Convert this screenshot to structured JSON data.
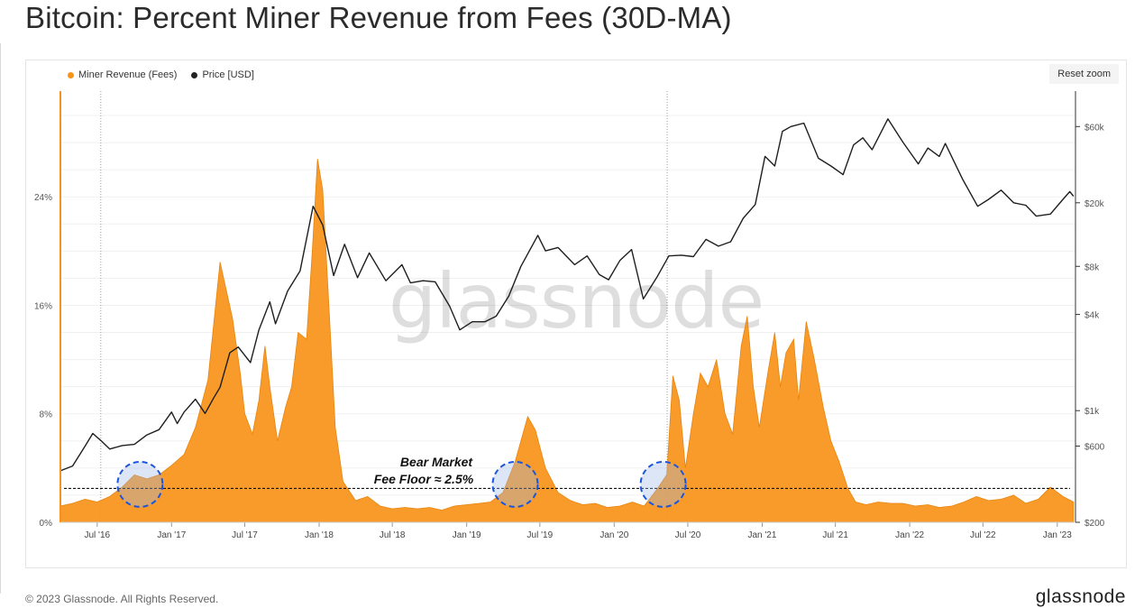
{
  "title": "Bitcoin: Percent Miner Revenue from Fees (30D-MA)",
  "legend": [
    {
      "label": "Miner Revenue (Fees)",
      "color": "#f7931a"
    },
    {
      "label": "Price [USD]",
      "color": "#222222"
    }
  ],
  "reset_zoom_label": "Reset zoom",
  "watermark": "glassnode",
  "annotation": {
    "line1": "Bear Market",
    "line2": "Fee Floor ≈ 2.5%"
  },
  "footer": {
    "copyright": "© 2023 Glassnode. All Rights Reserved.",
    "logo": "glassnode"
  },
  "colors": {
    "fees": "#f7931a",
    "price": "#1f1f1f",
    "highlight_circle": "#1a56db"
  },
  "chart_data": {
    "type": "area",
    "x_tick_labels": [
      "Jul '16",
      "Jan '17",
      "Jul '17",
      "Jan '18",
      "Jul '18",
      "Jan '19",
      "Jul '19",
      "Jan '20",
      "Jul '20",
      "Jan '21",
      "Jul '21",
      "Jan '22",
      "Jul '22",
      "Jan '23"
    ],
    "x_tick_dates": [
      "2016-07-01",
      "2017-01-01",
      "2017-07-01",
      "2018-01-01",
      "2018-07-01",
      "2019-01-01",
      "2019-07-01",
      "2020-01-01",
      "2020-07-01",
      "2021-01-01",
      "2021-07-01",
      "2022-01-01",
      "2022-07-01",
      "2023-01-01"
    ],
    "xlim": [
      "2016-04-01",
      "2023-02-15"
    ],
    "left_axis": {
      "label": "",
      "tick_labels": [
        "0%",
        "8%",
        "16%",
        "24%"
      ],
      "tick_values": [
        0,
        8,
        16,
        24
      ],
      "ylim": [
        0,
        31.8
      ]
    },
    "right_axis": {
      "label": "",
      "scale": "log",
      "tick_labels": [
        "$200",
        "$600",
        "$1k",
        "$4k",
        "$8k",
        "$20k",
        "$60k"
      ],
      "tick_values": [
        200,
        600,
        1000,
        4000,
        8000,
        20000,
        60000
      ]
    },
    "series": [
      {
        "name": "Miner Revenue (Fees)",
        "axis": "left",
        "type": "area",
        "color": "#f7931a",
        "points": [
          [
            "2016-04-01",
            1.2
          ],
          [
            "2016-05-01",
            1.4
          ],
          [
            "2016-06-01",
            1.7
          ],
          [
            "2016-07-01",
            1.5
          ],
          [
            "2016-08-01",
            1.9
          ],
          [
            "2016-09-01",
            2.6
          ],
          [
            "2016-10-01",
            3.5
          ],
          [
            "2016-11-01",
            3.2
          ],
          [
            "2016-12-01",
            3.5
          ],
          [
            "2017-01-01",
            4.2
          ],
          [
            "2017-02-01",
            5.0
          ],
          [
            "2017-03-01",
            7.0
          ],
          [
            "2017-04-01",
            10.5
          ],
          [
            "2017-05-01",
            19.2
          ],
          [
            "2017-06-01",
            15.0
          ],
          [
            "2017-06-20",
            11.0
          ],
          [
            "2017-07-01",
            8.0
          ],
          [
            "2017-07-20",
            6.5
          ],
          [
            "2017-08-05",
            9.0
          ],
          [
            "2017-08-20",
            13.0
          ],
          [
            "2017-09-01",
            10.0
          ],
          [
            "2017-09-20",
            6.0
          ],
          [
            "2017-10-10",
            8.5
          ],
          [
            "2017-10-25",
            10.0
          ],
          [
            "2017-11-10",
            14.0
          ],
          [
            "2017-12-01",
            13.5
          ],
          [
            "2017-12-15",
            20.0
          ],
          [
            "2017-12-28",
            26.8
          ],
          [
            "2018-01-10",
            24.5
          ],
          [
            "2018-01-25",
            16.0
          ],
          [
            "2018-02-10",
            7.0
          ],
          [
            "2018-03-01",
            3.0
          ],
          [
            "2018-04-01",
            1.6
          ],
          [
            "2018-05-01",
            1.9
          ],
          [
            "2018-06-01",
            1.2
          ],
          [
            "2018-07-01",
            1.0
          ],
          [
            "2018-08-01",
            1.1
          ],
          [
            "2018-09-01",
            1.0
          ],
          [
            "2018-10-01",
            1.1
          ],
          [
            "2018-11-01",
            0.9
          ],
          [
            "2018-12-01",
            1.2
          ],
          [
            "2019-01-01",
            1.3
          ],
          [
            "2019-02-01",
            1.4
          ],
          [
            "2019-03-01",
            1.5
          ],
          [
            "2019-04-01",
            2.2
          ],
          [
            "2019-05-01",
            4.5
          ],
          [
            "2019-06-01",
            7.8
          ],
          [
            "2019-06-20",
            6.8
          ],
          [
            "2019-07-15",
            4.0
          ],
          [
            "2019-08-15",
            2.2
          ],
          [
            "2019-09-15",
            1.6
          ],
          [
            "2019-10-15",
            1.3
          ],
          [
            "2019-11-15",
            1.4
          ],
          [
            "2019-12-15",
            1.1
          ],
          [
            "2020-01-15",
            1.2
          ],
          [
            "2020-02-15",
            1.5
          ],
          [
            "2020-03-15",
            1.2
          ],
          [
            "2020-04-15",
            2.4
          ],
          [
            "2020-05-10",
            3.5
          ],
          [
            "2020-05-25",
            10.8
          ],
          [
            "2020-06-10",
            9.0
          ],
          [
            "2020-06-25",
            4.0
          ],
          [
            "2020-07-15",
            8.0
          ],
          [
            "2020-08-01",
            11.0
          ],
          [
            "2020-08-20",
            10.0
          ],
          [
            "2020-09-10",
            12.0
          ],
          [
            "2020-10-01",
            8.0
          ],
          [
            "2020-10-20",
            6.5
          ],
          [
            "2020-11-10",
            13.0
          ],
          [
            "2020-11-25",
            15.2
          ],
          [
            "2020-12-10",
            10.0
          ],
          [
            "2020-12-25",
            7.0
          ],
          [
            "2021-01-15",
            11.0
          ],
          [
            "2021-02-01",
            14.0
          ],
          [
            "2021-02-15",
            10.0
          ],
          [
            "2021-03-01",
            12.5
          ],
          [
            "2021-03-20",
            13.5
          ],
          [
            "2021-04-01",
            9.0
          ],
          [
            "2021-04-20",
            14.8
          ],
          [
            "2021-05-10",
            12.0
          ],
          [
            "2021-06-01",
            8.5
          ],
          [
            "2021-06-20",
            6.0
          ],
          [
            "2021-07-10",
            4.5
          ],
          [
            "2021-08-01",
            2.5
          ],
          [
            "2021-08-20",
            1.5
          ],
          [
            "2021-09-15",
            1.3
          ],
          [
            "2021-10-15",
            1.5
          ],
          [
            "2021-11-15",
            1.4
          ],
          [
            "2021-12-15",
            1.4
          ],
          [
            "2022-01-15",
            1.2
          ],
          [
            "2022-02-15",
            1.3
          ],
          [
            "2022-03-15",
            1.1
          ],
          [
            "2022-04-15",
            1.2
          ],
          [
            "2022-05-15",
            1.5
          ],
          [
            "2022-06-15",
            1.9
          ],
          [
            "2022-07-15",
            1.6
          ],
          [
            "2022-08-15",
            1.7
          ],
          [
            "2022-09-15",
            2.0
          ],
          [
            "2022-10-15",
            1.4
          ],
          [
            "2022-11-15",
            1.7
          ],
          [
            "2022-12-15",
            2.6
          ],
          [
            "2023-01-15",
            1.9
          ],
          [
            "2023-02-10",
            1.5
          ]
        ]
      },
      {
        "name": "Price [USD]",
        "axis": "right",
        "type": "line",
        "color": "#1f1f1f",
        "points": [
          [
            "2016-04-01",
            420
          ],
          [
            "2016-05-01",
            450
          ],
          [
            "2016-06-01",
            600
          ],
          [
            "2016-06-20",
            720
          ],
          [
            "2016-07-10",
            650
          ],
          [
            "2016-08-01",
            575
          ],
          [
            "2016-09-01",
            605
          ],
          [
            "2016-10-01",
            615
          ],
          [
            "2016-11-01",
            705
          ],
          [
            "2016-12-01",
            760
          ],
          [
            "2017-01-01",
            980
          ],
          [
            "2017-01-15",
            830
          ],
          [
            "2017-02-01",
            980
          ],
          [
            "2017-03-01",
            1180
          ],
          [
            "2017-03-25",
            960
          ],
          [
            "2017-04-15",
            1200
          ],
          [
            "2017-05-01",
            1400
          ],
          [
            "2017-05-25",
            2300
          ],
          [
            "2017-06-15",
            2500
          ],
          [
            "2017-07-15",
            2000
          ],
          [
            "2017-08-05",
            3200
          ],
          [
            "2017-09-01",
            4800
          ],
          [
            "2017-09-15",
            3500
          ],
          [
            "2017-10-15",
            5600
          ],
          [
            "2017-11-15",
            7500
          ],
          [
            "2017-12-17",
            19000
          ],
          [
            "2018-01-10",
            14500
          ],
          [
            "2018-02-06",
            7000
          ],
          [
            "2018-03-05",
            11000
          ],
          [
            "2018-04-06",
            6800
          ],
          [
            "2018-05-05",
            9700
          ],
          [
            "2018-06-15",
            6500
          ],
          [
            "2018-07-25",
            8200
          ],
          [
            "2018-08-15",
            6300
          ],
          [
            "2018-09-15",
            6500
          ],
          [
            "2018-10-15",
            6400
          ],
          [
            "2018-11-20",
            4500
          ],
          [
            "2018-12-15",
            3200
          ],
          [
            "2019-01-15",
            3600
          ],
          [
            "2019-02-15",
            3600
          ],
          [
            "2019-03-15",
            3900
          ],
          [
            "2019-04-15",
            5200
          ],
          [
            "2019-05-15",
            8000
          ],
          [
            "2019-06-26",
            12500
          ],
          [
            "2019-07-15",
            10000
          ],
          [
            "2019-08-15",
            10500
          ],
          [
            "2019-09-25",
            8200
          ],
          [
            "2019-10-26",
            9300
          ],
          [
            "2019-11-25",
            7100
          ],
          [
            "2019-12-18",
            6600
          ],
          [
            "2020-01-15",
            8700
          ],
          [
            "2020-02-13",
            10200
          ],
          [
            "2020-03-13",
            5000
          ],
          [
            "2020-04-15",
            6800
          ],
          [
            "2020-05-15",
            9300
          ],
          [
            "2020-06-15",
            9400
          ],
          [
            "2020-07-15",
            9200
          ],
          [
            "2020-08-15",
            11800
          ],
          [
            "2020-09-15",
            10700
          ],
          [
            "2020-10-15",
            11400
          ],
          [
            "2020-11-15",
            16000
          ],
          [
            "2020-12-15",
            19500
          ],
          [
            "2021-01-08",
            39000
          ],
          [
            "2021-02-01",
            34000
          ],
          [
            "2021-02-20",
            56000
          ],
          [
            "2021-03-13",
            60000
          ],
          [
            "2021-04-14",
            63000
          ],
          [
            "2021-05-20",
            38000
          ],
          [
            "2021-06-20",
            34000
          ],
          [
            "2021-07-20",
            30000
          ],
          [
            "2021-08-15",
            46000
          ],
          [
            "2021-09-07",
            51000
          ],
          [
            "2021-09-30",
            43000
          ],
          [
            "2021-11-08",
            67000
          ],
          [
            "2021-12-15",
            48000
          ],
          [
            "2022-01-22",
            35000
          ],
          [
            "2022-02-15",
            44000
          ],
          [
            "2022-03-15",
            39000
          ],
          [
            "2022-03-30",
            47000
          ],
          [
            "2022-05-12",
            28000
          ],
          [
            "2022-06-18",
            19000
          ],
          [
            "2022-07-15",
            21000
          ],
          [
            "2022-08-15",
            24000
          ],
          [
            "2022-09-15",
            20000
          ],
          [
            "2022-10-15",
            19300
          ],
          [
            "2022-11-10",
            16500
          ],
          [
            "2022-12-15",
            17000
          ],
          [
            "2023-01-15",
            21000
          ],
          [
            "2023-02-01",
            23500
          ],
          [
            "2023-02-10",
            22000
          ]
        ]
      }
    ],
    "reference_line": {
      "axis": "left",
      "value": 2.5,
      "style": "dashed"
    },
    "vertical_markers": [
      "2016-07-10",
      "2020-05-11"
    ],
    "highlights": [
      {
        "date": "2016-10-15",
        "value": 2.8
      },
      {
        "date": "2019-05-01",
        "value": 2.8
      },
      {
        "date": "2020-05-01",
        "value": 2.8
      }
    ],
    "grid": true
  }
}
